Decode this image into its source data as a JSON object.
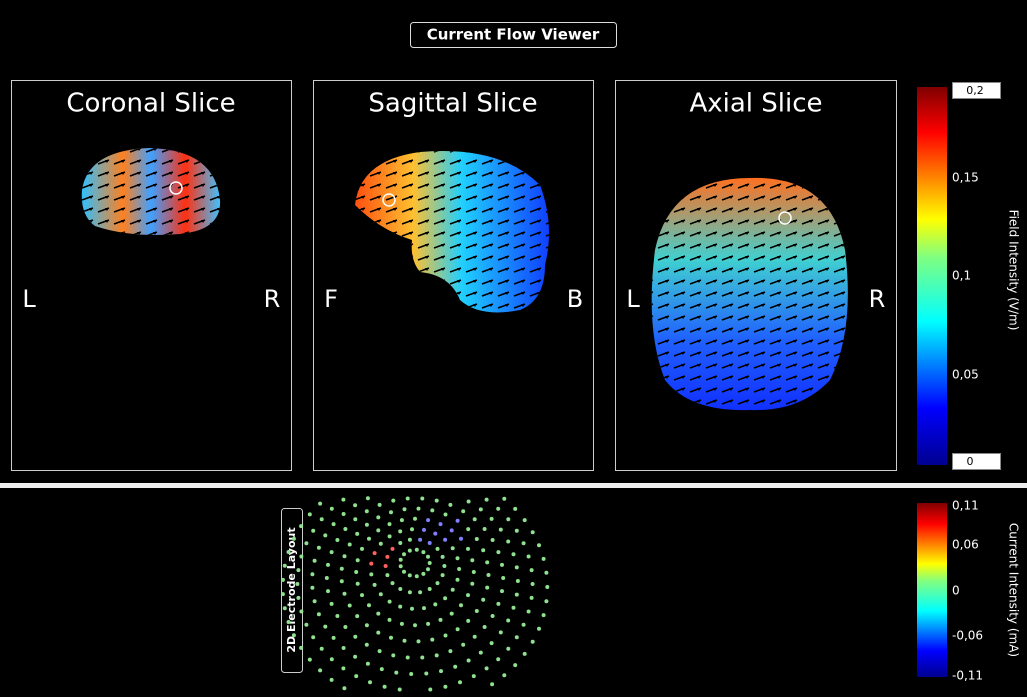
{
  "header": {
    "title": "Current Flow Viewer"
  },
  "panels": [
    {
      "title": "Coronal Slice",
      "left": "L",
      "right": "R"
    },
    {
      "title": "Sagittal Slice",
      "left": "F",
      "right": "B"
    },
    {
      "title": "Axial Slice",
      "left": "L",
      "right": "R"
    }
  ],
  "field_colorbar": {
    "label": "Field Intensity (V/m)",
    "max_input": "0,2",
    "min_input": "0",
    "ticks": [
      "0,15",
      "0,1",
      "0,05"
    ]
  },
  "electrode_layout": {
    "title": "2D Electrode Layout"
  },
  "current_colorbar": {
    "label": "Current Intensity (mA)",
    "ticks": [
      "0,11",
      "0,06",
      "0",
      "-0,06",
      "-0,11"
    ]
  }
}
